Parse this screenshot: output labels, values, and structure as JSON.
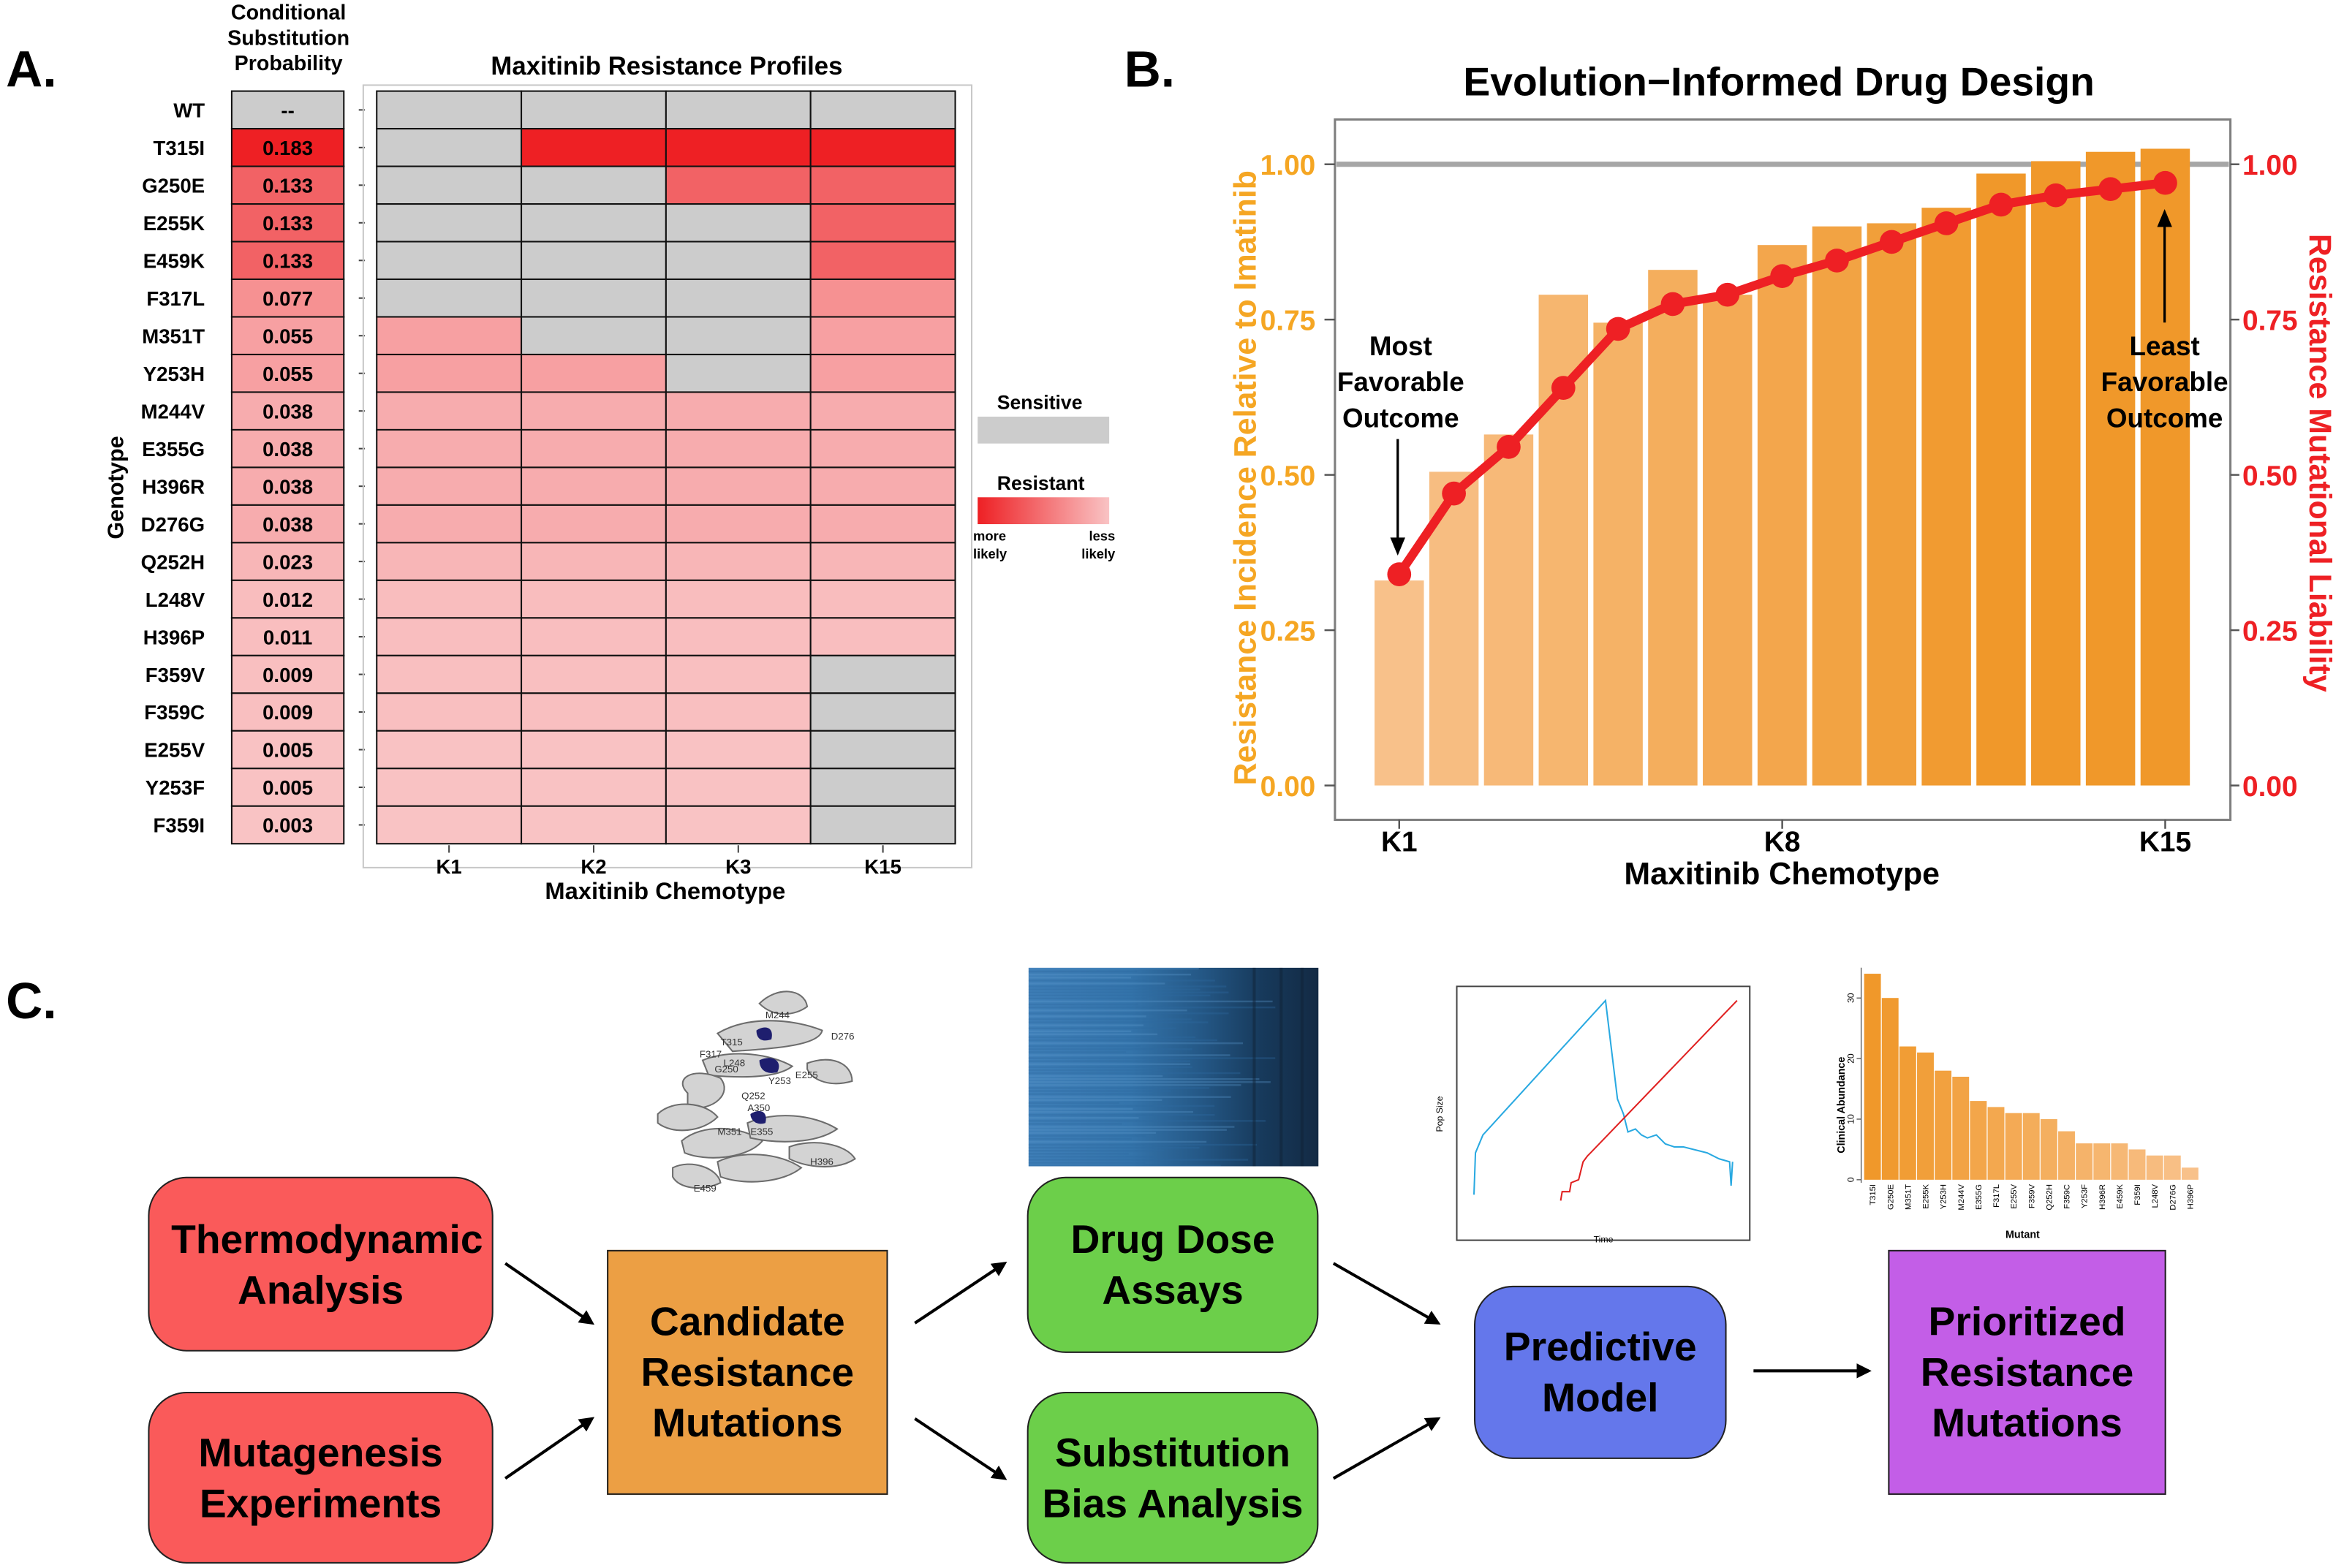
{
  "panel_labels": {
    "a": "A.",
    "b": "B.",
    "c": "C."
  },
  "colors": {
    "sensitive": "#cccccc",
    "resistant_more_likely": "#ee2024",
    "resistant_less_likely": "#f9c3c4",
    "bar_low": "#f8c18a",
    "bar_high": "#f0982a",
    "line": "#ee2024",
    "left_axis": "#f5a623",
    "right_axis": "#ee2024",
    "thermo_box": "#fa5a5a",
    "candidate_box": "#ec9f44",
    "assay_box": "#6ccf4a",
    "model_box": "#6477eb",
    "prioritized_box": "#c35ee7"
  },
  "panelA": {
    "prob_header": "Conditional Substitution Probability",
    "heat_title": "Maxitinib Resistance Profiles",
    "y_axis_label": "Genotype",
    "x_axis_label": "Maxitinib Chemotype",
    "legend": {
      "sensitive": "Sensitive",
      "resistant": "Resistant",
      "more_likely": "more likely",
      "less_likely": "less likely"
    }
  },
  "panelB": {
    "title": "Evolution−Informed Drug Design",
    "annotations": {
      "most": "Most Favorable Outcome",
      "least": "Least Favorable Outcome"
    }
  },
  "panelC": {
    "boxes": {
      "thermo": "Thermodynamic Analysis",
      "mutagenesis": "Mutagenesis Experiments",
      "candidate": "Candidate Resistance Mutations",
      "dose": "Drug Dose Assays",
      "bias": "Substitution Bias Analysis",
      "model": "Predictive Model",
      "prioritized": "Prioritized Resistance Mutations"
    },
    "protein_labels": [
      "M244",
      "D276",
      "T315",
      "F317",
      "L248",
      "G250",
      "E255",
      "Y253",
      "Q252",
      "A350",
      "M351",
      "E355",
      "H396",
      "E459"
    ],
    "sim_plot": {
      "ylabel": "Pop Size",
      "xlabel": "Time"
    },
    "mini_bar": {
      "ylabel": "Clinical Abundance",
      "xlabel": "Mutant",
      "yticks": [
        "0",
        "10",
        "20",
        "30"
      ],
      "categories": [
        "T315I",
        "G250E",
        "M351T",
        "E255K",
        "Y253H",
        "M244V",
        "E355G",
        "F317L",
        "E255V",
        "F359V",
        "Q252H",
        "F359C",
        "Y253F",
        "H396R",
        "E459K",
        "F359I",
        "L248V",
        "D276G",
        "H396P"
      ],
      "values": [
        34,
        30,
        22,
        21,
        18,
        17,
        13,
        12,
        11,
        11,
        10,
        8,
        6,
        6,
        6,
        5,
        4,
        4,
        2
      ]
    }
  },
  "chart_data": [
    {
      "type": "heatmap",
      "title": "Maxitinib Resistance Profiles",
      "xlabel": "Maxitinib Chemotype",
      "ylabel": "Genotype",
      "columns": [
        "K1",
        "K2",
        "K3",
        "K15"
      ],
      "rows": [
        {
          "genotype": "WT",
          "prob": "--",
          "profile": [
            0,
            0,
            0,
            0
          ]
        },
        {
          "genotype": "T315I",
          "prob": "0.183",
          "profile": [
            0,
            1,
            1,
            1
          ]
        },
        {
          "genotype": "G250E",
          "prob": "0.133",
          "profile": [
            0,
            0,
            1,
            1
          ]
        },
        {
          "genotype": "E255K",
          "prob": "0.133",
          "profile": [
            0,
            0,
            0,
            1
          ]
        },
        {
          "genotype": "E459K",
          "prob": "0.133",
          "profile": [
            0,
            0,
            0,
            1
          ]
        },
        {
          "genotype": "F317L",
          "prob": "0.077",
          "profile": [
            0,
            0,
            0,
            1
          ]
        },
        {
          "genotype": "M351T",
          "prob": "0.055",
          "profile": [
            1,
            0,
            0,
            1
          ]
        },
        {
          "genotype": "Y253H",
          "prob": "0.055",
          "profile": [
            1,
            1,
            0,
            1
          ]
        },
        {
          "genotype": "M244V",
          "prob": "0.038",
          "profile": [
            1,
            1,
            1,
            1
          ]
        },
        {
          "genotype": "E355G",
          "prob": "0.038",
          "profile": [
            1,
            1,
            1,
            1
          ]
        },
        {
          "genotype": "H396R",
          "prob": "0.038",
          "profile": [
            1,
            1,
            1,
            1
          ]
        },
        {
          "genotype": "D276G",
          "prob": "0.038",
          "profile": [
            1,
            1,
            1,
            1
          ]
        },
        {
          "genotype": "Q252H",
          "prob": "0.023",
          "profile": [
            1,
            1,
            1,
            1
          ]
        },
        {
          "genotype": "L248V",
          "prob": "0.012",
          "profile": [
            1,
            1,
            1,
            1
          ]
        },
        {
          "genotype": "H396P",
          "prob": "0.011",
          "profile": [
            1,
            1,
            1,
            1
          ]
        },
        {
          "genotype": "F359V",
          "prob": "0.009",
          "profile": [
            1,
            1,
            1,
            0
          ]
        },
        {
          "genotype": "F359C",
          "prob": "0.009",
          "profile": [
            1,
            1,
            1,
            0
          ]
        },
        {
          "genotype": "E255V",
          "prob": "0.005",
          "profile": [
            1,
            1,
            1,
            0
          ]
        },
        {
          "genotype": "Y253F",
          "prob": "0.005",
          "profile": [
            1,
            1,
            1,
            0
          ]
        },
        {
          "genotype": "F359I",
          "prob": "0.003",
          "profile": [
            1,
            1,
            1,
            0
          ]
        }
      ]
    },
    {
      "type": "bar",
      "title": "Evolution−Informed Drug Design",
      "xlabel": "Maxitinib Chemotype",
      "ylabel": "Resistance Incidence Relative to Imatinib",
      "y2label": "Resistance Mutational Liability",
      "ylim": [
        0,
        1.03
      ],
      "yticks": [
        "0.00",
        "0.25",
        "0.50",
        "0.75",
        "1.00"
      ],
      "xtick_labels": {
        "1": "K1",
        "8": "K8",
        "15": "K15"
      },
      "reference_line": 1.0,
      "bars": [
        0.33,
        0.505,
        0.565,
        0.79,
        0.745,
        0.83,
        0.79,
        0.87,
        0.9,
        0.905,
        0.93,
        0.985,
        1.005,
        1.02,
        1.025
      ],
      "series": [
        {
          "name": "Resistance Mutational Liability",
          "type": "line",
          "values": [
            0.34,
            0.47,
            0.545,
            0.64,
            0.735,
            0.775,
            0.79,
            0.82,
            0.845,
            0.875,
            0.905,
            0.935,
            0.95,
            0.96,
            0.97
          ]
        }
      ]
    }
  ]
}
